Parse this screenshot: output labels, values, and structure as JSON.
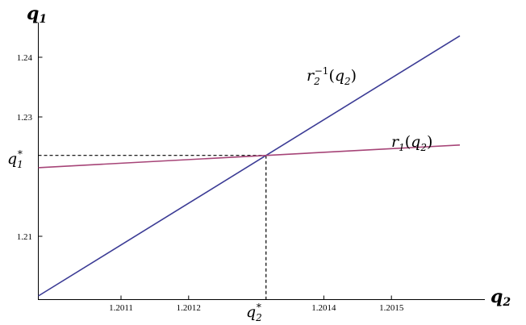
{
  "chart_data": {
    "type": "line",
    "title": "",
    "xlabel": "q2",
    "ylabel": "q1",
    "xlim": [
      1.20998,
      1.20162
    ],
    "ylim": [
      1.2,
      1.2445
    ],
    "x_ticks": [
      {
        "value": 1.2011,
        "label": "1.2011"
      },
      {
        "value": 1.2012,
        "label": "1.2012"
      },
      {
        "value": 1.2014,
        "label": "1.2014"
      },
      {
        "value": 1.2015,
        "label": "1.2015"
      }
    ],
    "y_ticks": [
      {
        "value": 1.21,
        "label": "1.21"
      },
      {
        "value": 1.23,
        "label": "1.23"
      },
      {
        "value": 1.24,
        "label": "1.24"
      }
    ],
    "series": [
      {
        "name": "r2^-1(q2)",
        "color": "#3b3b95",
        "x": [
          1.201,
          1.2016
        ],
        "y": [
          1.2,
          1.2436
        ]
      },
      {
        "name": "r1(q2)",
        "color": "#a64477",
        "x": [
          1.201,
          1.2016
        ],
        "y": [
          1.2215,
          1.2253
        ]
      }
    ],
    "annotations": {
      "equilibrium": {
        "x": 1.20132,
        "y": 1.2234
      },
      "x_star_label": "q2*",
      "y_star_label": "q1*",
      "curve_labels": [
        "r2^-1(q2)",
        "r1(q2)"
      ]
    },
    "grid": false,
    "legend": "none"
  }
}
